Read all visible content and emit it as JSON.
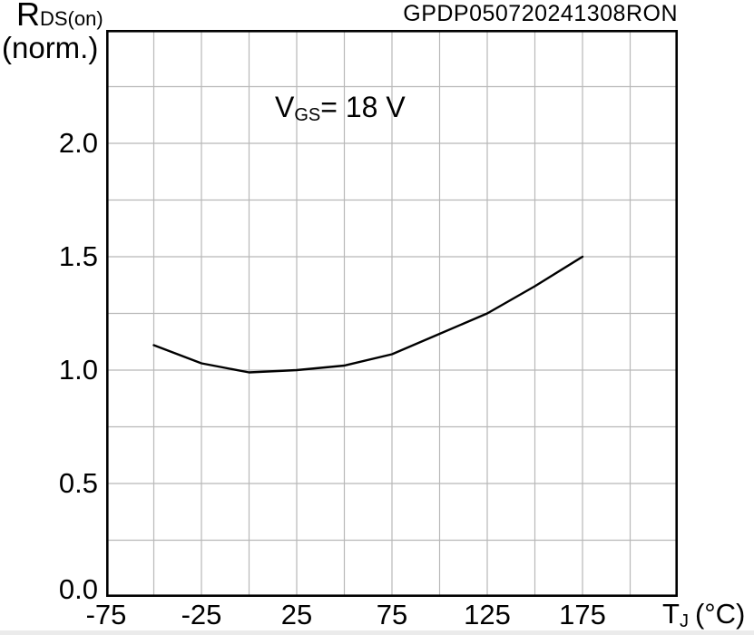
{
  "header": {
    "code": "GPDP050720241308RON"
  },
  "axis_labels": {
    "y": {
      "symbol": "R",
      "subscript": "DS(on)",
      "line2": "(norm.)"
    },
    "x": {
      "symbol": "T",
      "subscript": "J",
      "unit": "(°C)"
    }
  },
  "annotation": {
    "symbol": "V",
    "subscript": "GS",
    "text": "= 18 V"
  },
  "chart_data": {
    "type": "line",
    "x_range": [
      -75,
      225
    ],
    "y_range": [
      0,
      2.5
    ],
    "x_grid_step": 25,
    "y_grid_step": 0.25,
    "grid": true,
    "x_ticks": [
      {
        "value": -75,
        "label": "-75"
      },
      {
        "value": -25,
        "label": "-25"
      },
      {
        "value": 25,
        "label": "25"
      },
      {
        "value": 75,
        "label": "75"
      },
      {
        "value": 125,
        "label": "125"
      },
      {
        "value": 175,
        "label": "175"
      }
    ],
    "y_ticks": [
      {
        "value": 0,
        "label": "0.0"
      },
      {
        "value": 0.5,
        "label": "0.5"
      },
      {
        "value": 1,
        "label": "1.0"
      },
      {
        "value": 1.5,
        "label": "1.5"
      },
      {
        "value": 2,
        "label": "2.0"
      }
    ],
    "series": [
      {
        "x": [
          -50,
          -25,
          0,
          25,
          50,
          75,
          100,
          125,
          150,
          175
        ],
        "y": [
          1.11,
          1.03,
          0.99,
          1.0,
          1.02,
          1.07,
          1.16,
          1.25,
          1.37,
          1.5
        ]
      }
    ],
    "colors": {
      "curve": "#000000",
      "grid": "#b8b8b8",
      "axis": "#000000",
      "background": "#ffffff",
      "bottom_strip": "#ebebeb"
    }
  }
}
